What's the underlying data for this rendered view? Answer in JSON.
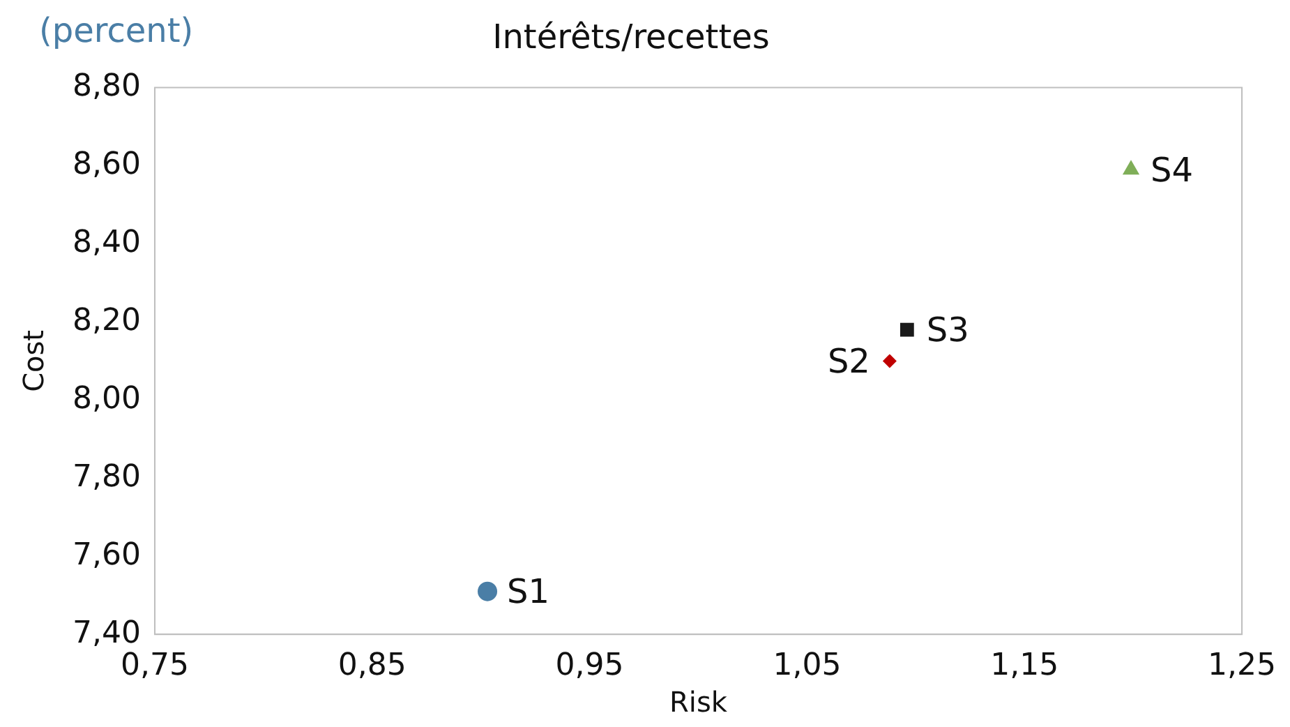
{
  "chart_data": {
    "type": "scatter",
    "title": "Intérêts/recettes",
    "xlabel": "Risk",
    "ylabel": "Cost",
    "annotations": [
      "(percent)"
    ],
    "series": [
      {
        "name": "S1",
        "color": "#4a7ea6",
        "marker": "circle",
        "x": [
          0.903
        ],
        "values": [
          7.51
        ]
      },
      {
        "name": "S2",
        "color": "#c00000",
        "marker": "diamond",
        "x": [
          1.088
        ],
        "values": [
          8.1
        ]
      },
      {
        "name": "S3",
        "color": "#1a1a1a",
        "marker": "square",
        "x": [
          1.096
        ],
        "values": [
          8.18
        ]
      },
      {
        "name": "S4",
        "color": "#7fae58",
        "marker": "triangle",
        "x": [
          1.199
        ],
        "values": [
          8.59
        ]
      }
    ],
    "xlim": [
      0.75,
      1.25
    ],
    "xticks": [
      {
        "value": 0.75,
        "label": "0,75"
      },
      {
        "value": 0.85,
        "label": "0,85"
      },
      {
        "value": 0.95,
        "label": "0,95"
      },
      {
        "value": 1.05,
        "label": "1,05"
      },
      {
        "value": 1.15,
        "label": "1,15"
      },
      {
        "value": 1.25,
        "label": "1,25"
      }
    ],
    "ylim": [
      7.4,
      8.8
    ],
    "yticks": [
      {
        "value": 7.4,
        "label": "7,40"
      },
      {
        "value": 7.6,
        "label": "7,60"
      },
      {
        "value": 7.8,
        "label": "7,80"
      },
      {
        "value": 8.0,
        "label": "8,00"
      },
      {
        "value": 8.2,
        "label": "8,20"
      },
      {
        "value": 8.4,
        "label": "8,40"
      },
      {
        "value": 8.6,
        "label": "8,60"
      },
      {
        "value": 8.8,
        "label": "8,80"
      }
    ],
    "grid": false,
    "legend": false
  }
}
